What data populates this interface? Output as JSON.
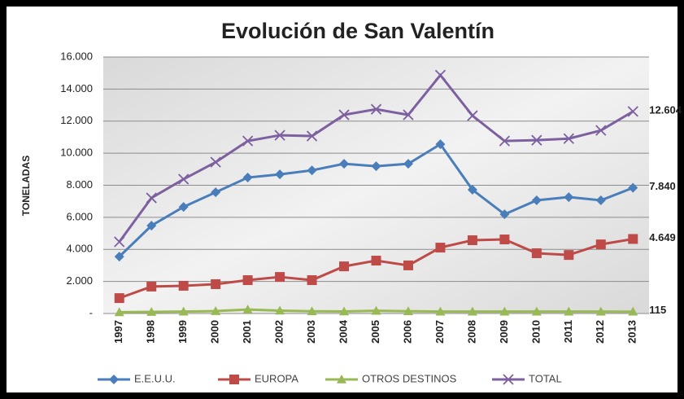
{
  "chart_data": {
    "type": "line",
    "title": "Evolución de San Valentín",
    "y_label": "TONELADAS",
    "categories": [
      "1997",
      "1998",
      "1999",
      "2000",
      "2001",
      "2002",
      "2003",
      "2004",
      "2005",
      "2006",
      "2007",
      "2008",
      "2009",
      "2010",
      "2011",
      "2012",
      "2013"
    ],
    "series": [
      {
        "name": "E.E.U.U.",
        "color": "#4a7ebb",
        "marker": "diamond",
        "values": [
          3550,
          5480,
          6650,
          7560,
          8480,
          8680,
          8930,
          9340,
          9190,
          9340,
          10560,
          7720,
          6190,
          7060,
          7260,
          7060,
          7840
        ],
        "value_labels": [
          null,
          null,
          null,
          null,
          null,
          null,
          null,
          null,
          null,
          null,
          null,
          null,
          null,
          null,
          null,
          null,
          "7.840"
        ]
      },
      {
        "name": "EUROPA",
        "color": "#be4b48",
        "marker": "square",
        "values": [
          960,
          1680,
          1730,
          1830,
          2080,
          2280,
          2080,
          2940,
          3300,
          3000,
          4110,
          4570,
          4620,
          3760,
          3650,
          4310,
          4649
        ],
        "value_labels": [
          null,
          null,
          null,
          null,
          null,
          null,
          null,
          null,
          null,
          null,
          null,
          null,
          null,
          null,
          null,
          null,
          "4.649"
        ]
      },
      {
        "name": "OTROS DESTINOS",
        "color": "#98b954",
        "marker": "triangle",
        "values": [
          80,
          100,
          120,
          150,
          250,
          180,
          140,
          130,
          170,
          140,
          120,
          120,
          120,
          120,
          120,
          120,
          115
        ],
        "value_labels": [
          null,
          null,
          null,
          null,
          null,
          null,
          null,
          null,
          null,
          null,
          null,
          null,
          null,
          null,
          null,
          null,
          "115"
        ]
      },
      {
        "name": "TOTAL",
        "color": "#7d60a0",
        "marker": "x",
        "values": [
          4470,
          7210,
          8380,
          9440,
          10760,
          11120,
          11070,
          12390,
          12740,
          12390,
          14870,
          12340,
          10760,
          10810,
          10910,
          11420,
          12604
        ],
        "value_labels": [
          null,
          null,
          null,
          null,
          null,
          null,
          null,
          null,
          null,
          null,
          null,
          null,
          null,
          null,
          null,
          null,
          "12.604"
        ]
      }
    ],
    "ylim": [
      0,
      16000
    ],
    "yticks": [
      {
        "value": 0,
        "label": "-"
      },
      {
        "value": 2000,
        "label": "2.000"
      },
      {
        "value": 4000,
        "label": "4.000"
      },
      {
        "value": 6000,
        "label": "6.000"
      },
      {
        "value": 8000,
        "label": "8.000"
      },
      {
        "value": 10000,
        "label": "10.000"
      },
      {
        "value": 12000,
        "label": "12.000"
      },
      {
        "value": 14000,
        "label": "14.000"
      },
      {
        "value": 16000,
        "label": "16.000"
      }
    ],
    "grid": true,
    "legend": "bottom"
  }
}
